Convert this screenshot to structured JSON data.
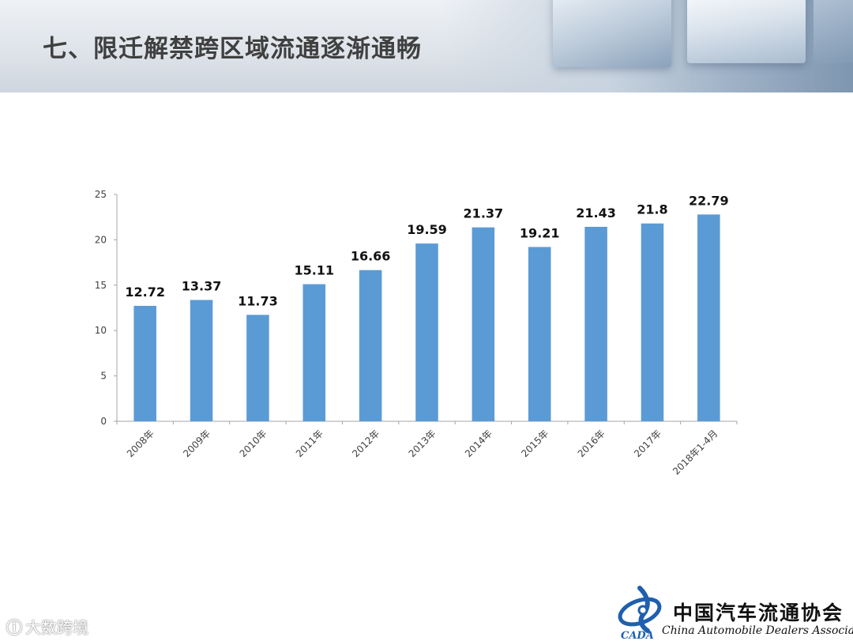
{
  "header": {
    "title": "七、限迁解禁跨区域流通逐渐通畅"
  },
  "colors": {
    "bar": "#5b9bd5",
    "axis": "#a6a6a6",
    "logo_blue": "#1f5fae"
  },
  "chart_data": {
    "type": "bar",
    "categories": [
      "2008年",
      "2009年",
      "2010年",
      "2011年",
      "2012年",
      "2013年",
      "2014年",
      "2015年",
      "2016年",
      "2017年",
      "2018年1-4月"
    ],
    "values": [
      12.72,
      13.37,
      11.73,
      15.11,
      16.66,
      19.59,
      21.37,
      19.21,
      21.43,
      21.8,
      22.79
    ],
    "data_labels": [
      "12.72",
      "13.37",
      "11.73",
      "15.11",
      "16.66",
      "19.59",
      "21.37",
      "19.21",
      "21.43",
      "21.8",
      "22.79"
    ],
    "yticks": [
      0,
      5,
      10,
      15,
      20,
      25
    ],
    "ylim": [
      0,
      25
    ],
    "title": "",
    "xlabel": "",
    "ylabel": "",
    "grid": false,
    "legend": "none"
  },
  "logo": {
    "name_cn": "中国汽车流通协会",
    "name_en": "China Automobile Dealers Association",
    "abbr": "CADA"
  },
  "watermark": {
    "icon": "ⓘ",
    "text": "大数跨境"
  }
}
